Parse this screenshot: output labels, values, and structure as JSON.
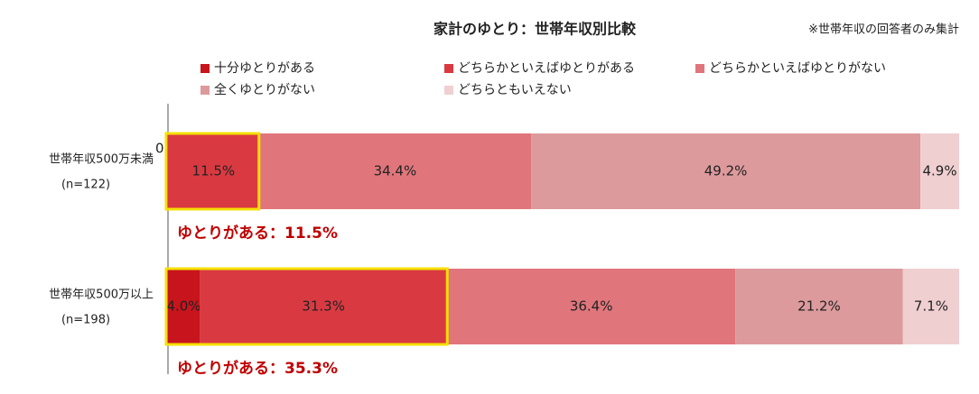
{
  "chart_data": {
    "type": "stacked-bar-horizontal",
    "title": "家計のゆとり：世帯年収別比較",
    "note": "※世帯年収の回答者のみ集計",
    "categories": [
      "世帯年収500万未満",
      "世帯年収500万以上"
    ],
    "sample_sizes": [
      "(n=122)",
      "(n=198)"
    ],
    "xlim": [
      0,
      100
    ],
    "series": [
      {
        "name": "十分ゆとりがある",
        "color": "#c8141c",
        "values": [
          0.0,
          4.0
        ],
        "value_labels": [
          "0.0%",
          "4.0%"
        ]
      },
      {
        "name": "どちらかといえばゆとりがある",
        "color": "#d93a42",
        "values": [
          11.5,
          31.3
        ],
        "value_labels": [
          "11.5%",
          "31.3%"
        ]
      },
      {
        "name": "どちらかといえばゆとりがない",
        "color": "#e0767c",
        "values": [
          34.4,
          36.4
        ],
        "value_labels": [
          "34.4%",
          "36.4%"
        ]
      },
      {
        "name": "全くゆとりがない",
        "color": "#dd9a9d",
        "values": [
          49.2,
          21.2
        ],
        "value_labels": [
          "49.2%",
          "21.2%"
        ]
      },
      {
        "name": "どちらともいえない",
        "color": "#f0cfd1",
        "values": [
          4.9,
          7.1
        ],
        "value_labels": [
          "4.9%",
          "7.1%"
        ]
      }
    ],
    "highlight_color": "#f5e000",
    "annotations": [
      "ゆとりがある：11.5%",
      "ゆとりがある：35.3%"
    ]
  }
}
